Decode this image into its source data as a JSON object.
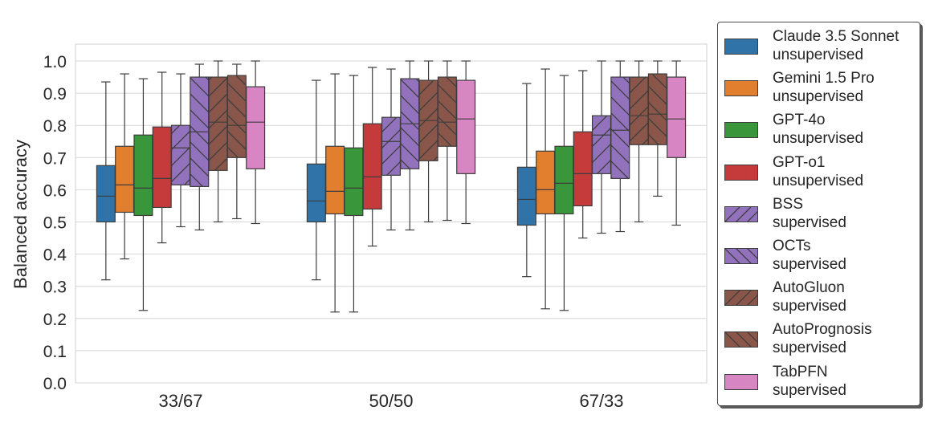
{
  "chart_data": {
    "type": "box",
    "ylabel": "Balanced accuracy",
    "xlabel": "",
    "ylim": [
      0.0,
      1.0
    ],
    "yticks": [
      "0.0",
      "0.1",
      "0.2",
      "0.3",
      "0.4",
      "0.5",
      "0.6",
      "0.7",
      "0.8",
      "0.9",
      "1.0"
    ],
    "grid": "horizontal",
    "legend_position": "right",
    "categories": [
      "33/67",
      "50/50",
      "67/33"
    ],
    "series": [
      {
        "name": "Claude 3.5 Sonnet",
        "subtitle": "unsupervised",
        "color": "#2f73a8",
        "hatch": "none",
        "boxes": [
          {
            "whislo": 0.32,
            "q1": 0.5,
            "med": 0.58,
            "q3": 0.675,
            "whishi": 0.935
          },
          {
            "whislo": 0.32,
            "q1": 0.5,
            "med": 0.565,
            "q3": 0.68,
            "whishi": 0.94
          },
          {
            "whislo": 0.33,
            "q1": 0.49,
            "med": 0.57,
            "q3": 0.67,
            "whishi": 0.93
          }
        ]
      },
      {
        "name": "Gemini 1.5 Pro",
        "subtitle": "unsupervised",
        "color": "#e17f2f",
        "hatch": "none",
        "boxes": [
          {
            "whislo": 0.385,
            "q1": 0.53,
            "med": 0.615,
            "q3": 0.735,
            "whishi": 0.96
          },
          {
            "whislo": 0.22,
            "q1": 0.525,
            "med": 0.595,
            "q3": 0.735,
            "whishi": 0.96
          },
          {
            "whislo": 0.23,
            "q1": 0.525,
            "med": 0.6,
            "q3": 0.72,
            "whishi": 0.975
          }
        ]
      },
      {
        "name": "GPT-4o",
        "subtitle": "unsupervised",
        "color": "#3a963a",
        "hatch": "none",
        "boxes": [
          {
            "whislo": 0.225,
            "q1": 0.52,
            "med": 0.605,
            "q3": 0.77,
            "whishi": 0.945
          },
          {
            "whislo": 0.22,
            "q1": 0.52,
            "med": 0.605,
            "q3": 0.73,
            "whishi": 0.955
          },
          {
            "whislo": 0.225,
            "q1": 0.525,
            "med": 0.62,
            "q3": 0.735,
            "whishi": 0.955
          }
        ]
      },
      {
        "name": "GPT-o1",
        "subtitle": "unsupervised",
        "color": "#c53a3a",
        "hatch": "none",
        "boxes": [
          {
            "whislo": 0.435,
            "q1": 0.545,
            "med": 0.635,
            "q3": 0.795,
            "whishi": 0.965
          },
          {
            "whislo": 0.425,
            "q1": 0.54,
            "med": 0.64,
            "q3": 0.805,
            "whishi": 0.98
          },
          {
            "whislo": 0.45,
            "q1": 0.55,
            "med": 0.65,
            "q3": 0.78,
            "whishi": 0.97
          }
        ]
      },
      {
        "name": "BSS",
        "subtitle": "supervised",
        "color": "#9272bd",
        "hatch": "fwd",
        "boxes": [
          {
            "whislo": 0.485,
            "q1": 0.615,
            "med": 0.73,
            "q3": 0.8,
            "whishi": 0.96
          },
          {
            "whislo": 0.475,
            "q1": 0.645,
            "med": 0.75,
            "q3": 0.825,
            "whishi": 0.975
          },
          {
            "whislo": 0.465,
            "q1": 0.65,
            "med": 0.77,
            "q3": 0.83,
            "whishi": 1.0
          }
        ]
      },
      {
        "name": "OCTs",
        "subtitle": "supervised",
        "color": "#9272bd",
        "hatch": "back",
        "boxes": [
          {
            "whislo": 0.475,
            "q1": 0.61,
            "med": 0.78,
            "q3": 0.95,
            "whishi": 0.99
          },
          {
            "whislo": 0.475,
            "q1": 0.665,
            "med": 0.805,
            "q3": 0.945,
            "whishi": 1.0
          },
          {
            "whislo": 0.47,
            "q1": 0.635,
            "med": 0.785,
            "q3": 0.95,
            "whishi": 1.0
          }
        ]
      },
      {
        "name": "AutoGluon",
        "subtitle": "supervised",
        "color": "#8a5649",
        "hatch": "fwd",
        "boxes": [
          {
            "whislo": 0.5,
            "q1": 0.66,
            "med": 0.81,
            "q3": 0.95,
            "whishi": 1.0
          },
          {
            "whislo": 0.5,
            "q1": 0.69,
            "med": 0.815,
            "q3": 0.94,
            "whishi": 1.0
          },
          {
            "whislo": 0.5,
            "q1": 0.74,
            "med": 0.83,
            "q3": 0.95,
            "whishi": 1.0
          }
        ]
      },
      {
        "name": "AutoPrognosis",
        "subtitle": "supervised",
        "color": "#8a5649",
        "hatch": "back",
        "boxes": [
          {
            "whislo": 0.51,
            "q1": 0.7,
            "med": 0.8,
            "q3": 0.955,
            "whishi": 0.99
          },
          {
            "whislo": 0.505,
            "q1": 0.735,
            "med": 0.81,
            "q3": 0.95,
            "whishi": 1.0
          },
          {
            "whislo": 0.58,
            "q1": 0.74,
            "med": 0.835,
            "q3": 0.96,
            "whishi": 1.0
          }
        ]
      },
      {
        "name": "TabPFN",
        "subtitle": "supervised",
        "color": "#d885c4",
        "hatch": "none",
        "boxes": [
          {
            "whislo": 0.495,
            "q1": 0.665,
            "med": 0.81,
            "q3": 0.92,
            "whishi": 1.0
          },
          {
            "whislo": 0.495,
            "q1": 0.65,
            "med": 0.82,
            "q3": 0.94,
            "whishi": 1.0
          },
          {
            "whislo": 0.49,
            "q1": 0.7,
            "med": 0.82,
            "q3": 0.95,
            "whishi": 1.0
          }
        ]
      }
    ]
  }
}
